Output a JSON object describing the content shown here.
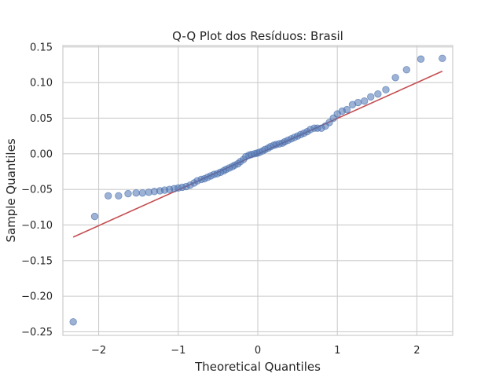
{
  "chart_data": {
    "type": "scatter",
    "title": "Q-Q Plot dos Resíduos: Brasil",
    "xlabel": "Theoretical Quantiles",
    "ylabel": "Sample Quantiles",
    "xlim": [
      -2.45,
      2.45
    ],
    "ylim": [
      -0.255,
      0.152
    ],
    "xticks": [
      -2,
      -1,
      0,
      1,
      2
    ],
    "xtick_labels": [
      "−2",
      "−1",
      "0",
      "1",
      "2"
    ],
    "yticks": [
      0.15,
      0.1,
      0.05,
      0.0,
      -0.05,
      -0.1,
      -0.15,
      -0.2,
      -0.25
    ],
    "ytick_labels": [
      "0.15",
      "0.10",
      "0.05",
      "0.00",
      "−0.05",
      "−0.10",
      "−0.15",
      "−0.20",
      "−0.25"
    ],
    "grid": true,
    "colors": {
      "points": "#4c72b0",
      "line": "#c44e52",
      "grid": "#cccccc",
      "spine": "#cccccc"
    },
    "series": [
      {
        "kind": "points",
        "x": [
          -2.32,
          -2.05,
          -1.88,
          -1.75,
          -1.63,
          -1.53,
          -1.45,
          -1.37,
          -1.3,
          -1.23,
          -1.17,
          -1.11,
          -1.05,
          -1.0,
          -0.95,
          -0.9,
          -0.85,
          -0.8,
          -0.76,
          -0.71,
          -0.67,
          -0.63,
          -0.59,
          -0.55,
          -0.51,
          -0.47,
          -0.43,
          -0.4,
          -0.36,
          -0.32,
          -0.29,
          -0.25,
          -0.22,
          -0.18,
          -0.15,
          -0.11,
          -0.08,
          -0.04,
          -0.01,
          0.02,
          0.06,
          0.09,
          0.13,
          0.16,
          0.2,
          0.23,
          0.27,
          0.31,
          0.34,
          0.38,
          0.42,
          0.46,
          0.5,
          0.54,
          0.58,
          0.62,
          0.66,
          0.71,
          0.75,
          0.8,
          0.85,
          0.9,
          0.95,
          1.0,
          1.06,
          1.12,
          1.19,
          1.26,
          1.34,
          1.42,
          1.51,
          1.61,
          1.73,
          1.87,
          2.05,
          2.32
        ],
        "y": [
          -0.236,
          -0.088,
          -0.059,
          -0.059,
          -0.056,
          -0.055,
          -0.055,
          -0.054,
          -0.053,
          -0.052,
          -0.051,
          -0.05,
          -0.049,
          -0.048,
          -0.047,
          -0.046,
          -0.044,
          -0.041,
          -0.038,
          -0.036,
          -0.035,
          -0.033,
          -0.031,
          -0.029,
          -0.028,
          -0.026,
          -0.024,
          -0.022,
          -0.02,
          -0.018,
          -0.016,
          -0.014,
          -0.011,
          -0.008,
          -0.004,
          -0.002,
          -0.001,
          0.0,
          0.001,
          0.002,
          0.004,
          0.006,
          0.008,
          0.01,
          0.012,
          0.013,
          0.014,
          0.015,
          0.017,
          0.019,
          0.021,
          0.023,
          0.025,
          0.027,
          0.029,
          0.031,
          0.034,
          0.036,
          0.036,
          0.036,
          0.039,
          0.044,
          0.05,
          0.056,
          0.06,
          0.062,
          0.069,
          0.072,
          0.074,
          0.08,
          0.084,
          0.09,
          0.107,
          0.118,
          0.133,
          0.134
        ]
      },
      {
        "kind": "reference-line",
        "x": [
          -2.32,
          2.32
        ],
        "y": [
          -0.117,
          0.116
        ]
      }
    ]
  }
}
